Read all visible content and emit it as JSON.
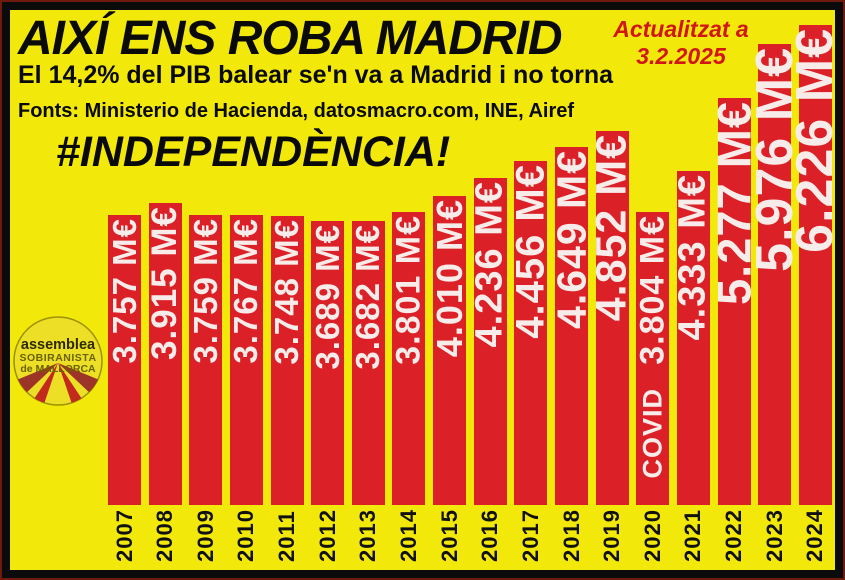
{
  "header": {
    "title": "AIXÍ ENS ROBA MADRID",
    "updated_line1": "Actualitzat a",
    "updated_line2": "3.2.2025",
    "subtitle": "El 14,2% del PIB balear se'n va a Madrid i no torna",
    "sources": "Fonts: Ministerio de Hacienda, datosmacro.com, INE, Airef",
    "hashtag": "#INDEPENDÈNCIA!"
  },
  "logo": {
    "line1": "assemblea",
    "line2": "SOBIRANISTA",
    "line3": "de MALLORCA"
  },
  "chart_data": {
    "type": "bar",
    "title": "AIXÍ ENS ROBA MADRID",
    "unit": "M€",
    "categories": [
      "2007",
      "2008",
      "2009",
      "2010",
      "2011",
      "2012",
      "2013",
      "2014",
      "2015",
      "2016",
      "2017",
      "2018",
      "2019",
      "2020",
      "2021",
      "2022",
      "2023",
      "2024"
    ],
    "values": [
      3757,
      3915,
      3759,
      3767,
      3748,
      3689,
      3682,
      3801,
      4010,
      4236,
      4456,
      4649,
      4852,
      3804,
      4333,
      5277,
      5976,
      6226
    ],
    "labels": [
      "3.757 M€",
      "3.915 M€",
      "3.759 M€",
      "3.767 M€",
      "3.748 M€",
      "3.689 M€",
      "3.682 M€",
      "3.801 M€",
      "4.010 M€",
      "4.236 M€",
      "4.456 M€",
      "4.649 M€",
      "4.852 M€",
      "3.804 M€",
      "4.333 M€",
      "5.277 M€",
      "5.976 M€",
      "6.226 M€"
    ],
    "annotations": [
      {
        "category": "2020",
        "text": "COVID"
      }
    ],
    "ylim": [
      0,
      6226
    ],
    "grid": false,
    "legend": false,
    "bar_color": "#DB2127",
    "label_color": "#F8ECEA",
    "background_color": "#F2E90A",
    "accent_red": "#D01616"
  }
}
